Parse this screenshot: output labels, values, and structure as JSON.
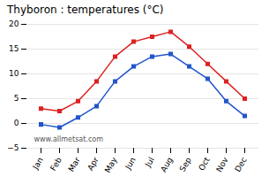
{
  "chart_data": {
    "type": "line",
    "title": "Thyboron : temperatures (°C)",
    "categories": [
      "Jan",
      "Feb",
      "Mar",
      "Apr",
      "May",
      "Jun",
      "Jul",
      "Aug",
      "Sep",
      "Oct",
      "Nov",
      "Dec"
    ],
    "series": [
      {
        "color": "#dd2222",
        "marker": "square",
        "line_style": "solid",
        "values": [
          3.0,
          2.5,
          4.5,
          8.5,
          13.5,
          16.5,
          17.5,
          18.5,
          15.5,
          12.0,
          8.5,
          5.0
        ]
      },
      {
        "color": "#2255cc",
        "marker": "square",
        "line_style": "solid",
        "values": [
          -0.2,
          -0.8,
          1.2,
          3.5,
          8.5,
          11.5,
          13.5,
          14.0,
          11.5,
          9.0,
          4.5,
          1.5
        ]
      }
    ],
    "ylim": [
      -5,
      20
    ],
    "yticks": [
      -5,
      0,
      5,
      10,
      15,
      20
    ],
    "grid": true,
    "annotations": [
      "www.allmetsat.com"
    ]
  }
}
